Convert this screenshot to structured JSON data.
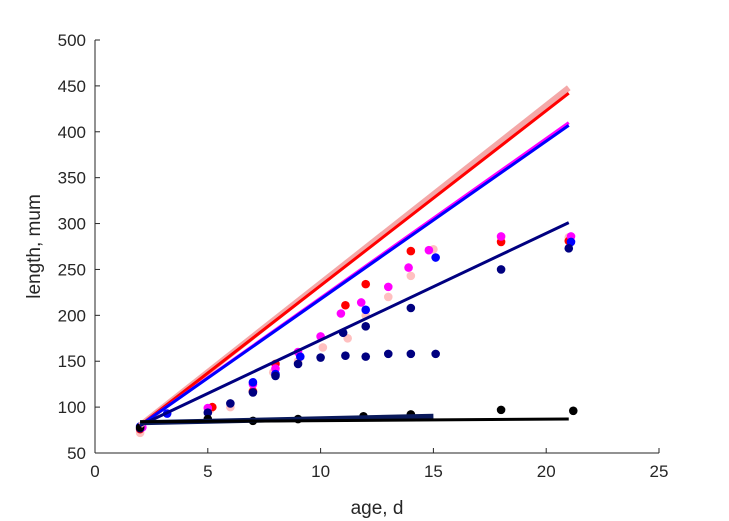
{
  "chart_data": {
    "type": "scatter",
    "title": "",
    "xlabel": "age, d",
    "ylabel": "length, mum",
    "xlim": [
      0,
      25
    ],
    "ylim": [
      50,
      500
    ],
    "xticks": [
      0,
      5,
      10,
      15,
      20,
      25
    ],
    "yticks": [
      50,
      100,
      150,
      200,
      250,
      300,
      350,
      400,
      450,
      500
    ],
    "grid": false,
    "legend": "none",
    "series": [
      {
        "color": "#ffc0c0",
        "kind": "points",
        "points": [
          [
            2.0,
            72
          ],
          [
            5.1,
            97
          ],
          [
            6.0,
            100
          ],
          [
            7.0,
            118
          ],
          [
            7.9,
            138
          ],
          [
            9.0,
            150
          ],
          [
            10.1,
            165
          ],
          [
            11.2,
            175
          ],
          [
            12.0,
            200
          ],
          [
            13.0,
            220
          ],
          [
            14.0,
            243
          ],
          [
            15.0,
            272
          ],
          [
            18.0,
            285
          ],
          [
            21.0,
            285
          ]
        ]
      },
      {
        "color": "#ff0000",
        "kind": "points",
        "points": [
          [
            2.0,
            76
          ],
          [
            5.2,
            100
          ],
          [
            7.0,
            117
          ],
          [
            8.0,
            147
          ],
          [
            11.1,
            211
          ],
          [
            12.0,
            234
          ],
          [
            14.0,
            270
          ],
          [
            18.0,
            280
          ],
          [
            21.0,
            281
          ]
        ]
      },
      {
        "color": "#ff00ff",
        "kind": "points",
        "points": [
          [
            2.1,
            78
          ],
          [
            5.0,
            99
          ],
          [
            7.0,
            125
          ],
          [
            8.0,
            142
          ],
          [
            9.0,
            160
          ],
          [
            10.0,
            177
          ],
          [
            10.9,
            202
          ],
          [
            11.8,
            214
          ],
          [
            13.0,
            231
          ],
          [
            13.9,
            252
          ],
          [
            14.8,
            271
          ],
          [
            18.0,
            286
          ],
          [
            21.1,
            286
          ]
        ]
      },
      {
        "color": "#0000ff",
        "kind": "points",
        "points": [
          [
            2.0,
            79
          ],
          [
            3.2,
            93
          ],
          [
            7.0,
            127
          ],
          [
            8.0,
            136
          ],
          [
            9.1,
            155
          ],
          [
            12.0,
            206
          ],
          [
            15.1,
            263
          ],
          [
            21.1,
            280
          ]
        ]
      },
      {
        "color": "#000080",
        "kind": "points",
        "points": [
          [
            2.0,
            77
          ],
          [
            5.0,
            94
          ],
          [
            6.0,
            104
          ],
          [
            7.0,
            116
          ],
          [
            8.0,
            134
          ],
          [
            9.0,
            147
          ],
          [
            10.0,
            154
          ],
          [
            11.0,
            181
          ],
          [
            11.1,
            156
          ],
          [
            12.0,
            188
          ],
          [
            12.0,
            155
          ],
          [
            13.0,
            158
          ],
          [
            14.0,
            208
          ],
          [
            14.0,
            158
          ],
          [
            15.1,
            158
          ],
          [
            18.0,
            250
          ],
          [
            21.0,
            273
          ]
        ]
      },
      {
        "color": "#000000",
        "kind": "points",
        "points": [
          [
            2.0,
            78
          ],
          [
            5.0,
            87
          ],
          [
            7.0,
            85
          ],
          [
            9.0,
            87
          ],
          [
            11.9,
            90
          ],
          [
            14.0,
            92
          ],
          [
            18.0,
            97
          ],
          [
            21.2,
            96
          ]
        ]
      },
      {
        "color": "#f4a8a8",
        "kind": "line",
        "width": 6,
        "points": [
          [
            2.0,
            80
          ],
          [
            21.0,
            448
          ]
        ]
      },
      {
        "color": "#ff0000",
        "kind": "line",
        "width": 3,
        "points": [
          [
            2.0,
            80
          ],
          [
            21.0,
            442
          ]
        ]
      },
      {
        "color": "#ff00ff",
        "kind": "line",
        "width": 3,
        "points": [
          [
            2.0,
            80
          ],
          [
            21.0,
            410
          ]
        ]
      },
      {
        "color": "#0000ff",
        "kind": "line",
        "width": 3,
        "points": [
          [
            2.0,
            80
          ],
          [
            21.0,
            407
          ]
        ]
      },
      {
        "color": "#000080",
        "kind": "line",
        "width": 3,
        "points": [
          [
            2.0,
            80
          ],
          [
            21.0,
            301
          ]
        ]
      },
      {
        "color": "#0a1a5c",
        "kind": "line",
        "width": 5,
        "points": [
          [
            2.0,
            83
          ],
          [
            15.0,
            90
          ]
        ]
      },
      {
        "color": "#000000",
        "kind": "line",
        "width": 3,
        "points": [
          [
            2.0,
            84
          ],
          [
            21.0,
            87
          ]
        ]
      }
    ]
  }
}
